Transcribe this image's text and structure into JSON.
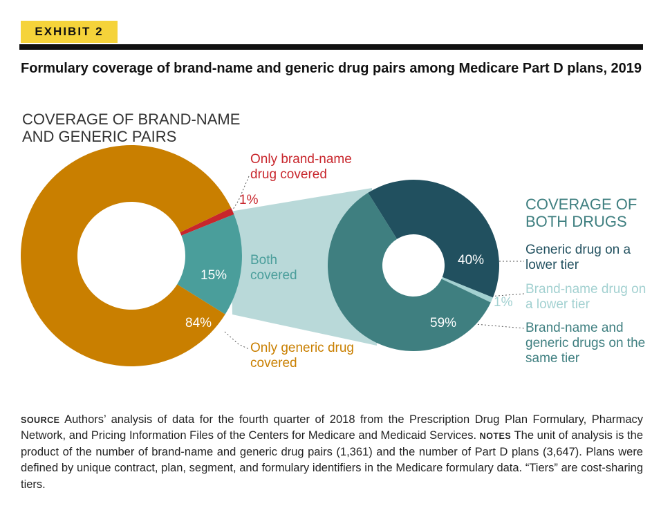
{
  "exhibit": "EXHIBIT 2",
  "title": "Formulary coverage of brand-name and generic drug pairs among Medicare Part D plans, 2019",
  "chart_data": [
    {
      "type": "donut",
      "title": "COVERAGE OF BRAND-NAME AND GENERIC PAIRS",
      "categories": [
        "Only brand-name drug covered",
        "Both covered",
        "Only generic drug covered"
      ],
      "values": [
        1,
        15,
        84
      ],
      "value_labels": [
        "1%",
        "15%",
        "84%"
      ],
      "colors": [
        "#c8262c",
        "#4a9e9b",
        "#c97f00"
      ]
    },
    {
      "type": "donut",
      "title": "COVERAGE OF BOTH DRUGS",
      "categories": [
        "Generic drug on a lower tier",
        "Brand-name drug on a lower tier",
        "Brand-name and generic drugs on the same tier"
      ],
      "values": [
        40,
        1,
        59
      ],
      "value_labels": [
        "40%",
        "1%",
        "59%"
      ],
      "colors": [
        "#21505f",
        "#a3d1d1",
        "#3f7f80"
      ]
    }
  ],
  "source_label": "SOURCE",
  "source": "Authors’ analysis of data for the fourth quarter of 2018 from the Prescription Drug Plan Formulary, Pharmacy Network, and Pricing Information Files of the Centers for Medicare and Medicaid Services.",
  "notes_label": "NOTES",
  "notes": "The unit of analysis is the product of the number of brand-name and generic drug pairs (1,361) and the number of Part D plans (3,647). Plans were defined by unique contract, plan, segment, and formulary identifiers in the Medicare formulary data. “Tiers” are cost-sharing tiers."
}
